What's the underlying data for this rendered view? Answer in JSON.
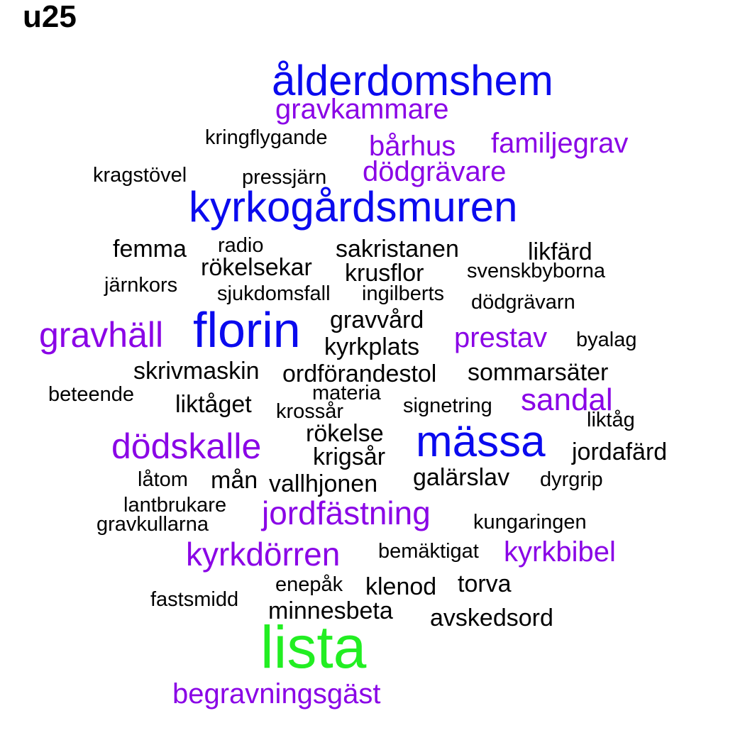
{
  "title": "u25",
  "colors": {
    "black": "#000000",
    "purple": "#8a05e6",
    "blue": "#0a0aee",
    "green": "#22ee22"
  },
  "words": [
    {
      "text": "ålderdomshem",
      "color": "blue"
    },
    {
      "text": "gravkammare",
      "color": "purple"
    },
    {
      "text": "kringflygande",
      "color": "black"
    },
    {
      "text": "bårhus",
      "color": "purple"
    },
    {
      "text": "familjegrav",
      "color": "purple"
    },
    {
      "text": "kragstövel",
      "color": "black"
    },
    {
      "text": "pressjärn",
      "color": "black"
    },
    {
      "text": "dödgrävare",
      "color": "purple"
    },
    {
      "text": "kyrkogårdsmuren",
      "color": "blue"
    },
    {
      "text": "femma",
      "color": "black"
    },
    {
      "text": "radio",
      "color": "black"
    },
    {
      "text": "sakristanen",
      "color": "black"
    },
    {
      "text": "likfärd",
      "color": "black"
    },
    {
      "text": "rökelsekar",
      "color": "black"
    },
    {
      "text": "krusflor",
      "color": "black"
    },
    {
      "text": "svenskbyborna",
      "color": "black"
    },
    {
      "text": "järnkors",
      "color": "black"
    },
    {
      "text": "sjukdomsfall",
      "color": "black"
    },
    {
      "text": "ingilberts",
      "color": "black"
    },
    {
      "text": "dödgrävarn",
      "color": "black"
    },
    {
      "text": "gravhäll",
      "color": "purple"
    },
    {
      "text": "florin",
      "color": "blue"
    },
    {
      "text": "gravvård",
      "color": "black"
    },
    {
      "text": "prestav",
      "color": "purple"
    },
    {
      "text": "byalag",
      "color": "black"
    },
    {
      "text": "kyrkplats",
      "color": "black"
    },
    {
      "text": "skrivmaskin",
      "color": "black"
    },
    {
      "text": "ordförandestol",
      "color": "black"
    },
    {
      "text": "sommarsäter",
      "color": "black"
    },
    {
      "text": "beteende",
      "color": "black"
    },
    {
      "text": "materia",
      "color": "black"
    },
    {
      "text": "sandal",
      "color": "purple"
    },
    {
      "text": "liktåget",
      "color": "black"
    },
    {
      "text": "krossår",
      "color": "black"
    },
    {
      "text": "signetring",
      "color": "black"
    },
    {
      "text": "liktåg",
      "color": "black"
    },
    {
      "text": "rökelse",
      "color": "black"
    },
    {
      "text": "dödskalle",
      "color": "purple"
    },
    {
      "text": "mässa",
      "color": "blue"
    },
    {
      "text": "krigsår",
      "color": "black"
    },
    {
      "text": "jordafärd",
      "color": "black"
    },
    {
      "text": "låtom",
      "color": "black"
    },
    {
      "text": "mån",
      "color": "black"
    },
    {
      "text": "galärslav",
      "color": "black"
    },
    {
      "text": "vallhjonen",
      "color": "black"
    },
    {
      "text": "dyrgrip",
      "color": "black"
    },
    {
      "text": "lantbrukare",
      "color": "black"
    },
    {
      "text": "jordfästning",
      "color": "purple"
    },
    {
      "text": "gravkullarna",
      "color": "black"
    },
    {
      "text": "kungaringen",
      "color": "black"
    },
    {
      "text": "kyrkdörren",
      "color": "purple"
    },
    {
      "text": "bemäktigat",
      "color": "black"
    },
    {
      "text": "kyrkbibel",
      "color": "purple"
    },
    {
      "text": "enepåk",
      "color": "black"
    },
    {
      "text": "klenod",
      "color": "black"
    },
    {
      "text": "torva",
      "color": "black"
    },
    {
      "text": "fastsmidd",
      "color": "black"
    },
    {
      "text": "minnesbeta",
      "color": "black"
    },
    {
      "text": "avskedsord",
      "color": "black"
    },
    {
      "text": "lista",
      "color": "green"
    },
    {
      "text": "begravningsgäst",
      "color": "purple"
    }
  ]
}
